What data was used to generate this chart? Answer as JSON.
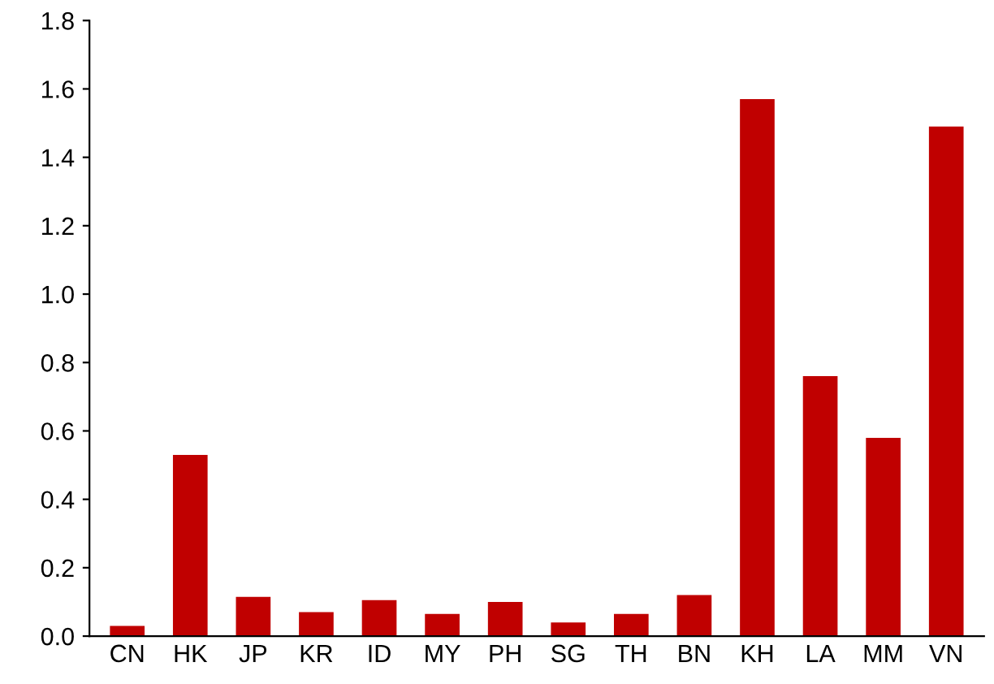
{
  "chart_data": {
    "type": "bar",
    "categories": [
      "CN",
      "HK",
      "JP",
      "KR",
      "ID",
      "MY",
      "PH",
      "SG",
      "TH",
      "BN",
      "KH",
      "LA",
      "MM",
      "VN"
    ],
    "values": [
      0.03,
      0.53,
      0.115,
      0.07,
      0.105,
      0.065,
      0.1,
      0.04,
      0.065,
      0.12,
      1.57,
      0.76,
      0.58,
      1.49
    ],
    "color": "#c00000",
    "ylim": [
      0,
      1.8
    ],
    "yticks": [
      {
        "value": 0,
        "label": "0.0"
      },
      {
        "value": 0.2,
        "label": "0.2"
      },
      {
        "value": 0.4,
        "label": "0.4"
      },
      {
        "value": 0.6,
        "label": "0.6"
      },
      {
        "value": 0.8,
        "label": "0.8"
      },
      {
        "value": 1.0,
        "label": "1.0"
      },
      {
        "value": 1.2,
        "label": "1.2"
      },
      {
        "value": 1.4,
        "label": "1.4"
      },
      {
        "value": 1.6,
        "label": "1.6"
      },
      {
        "value": 1.8,
        "label": "1.8"
      }
    ],
    "grid": false
  }
}
